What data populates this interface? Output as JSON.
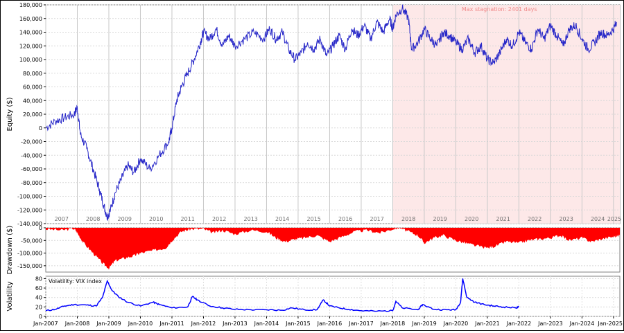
{
  "chart_data": [
    {
      "type": "line",
      "panel": "equity",
      "ylabel": "Equity ($)",
      "ylim": [
        -140000,
        180000
      ],
      "y_ticks": [
        "-140,000",
        "-120,000",
        "-100,000",
        "-80,000",
        "-60,000",
        "-40,000",
        "-20,000",
        "0",
        "20,000",
        "40,000",
        "60,000",
        "80,000",
        "100,000",
        "120,000",
        "140,000",
        "160,000",
        "180,000"
      ],
      "y_tick_values": [
        -140000,
        -120000,
        -100000,
        -80000,
        -60000,
        -40000,
        -20000,
        0,
        20000,
        40000,
        60000,
        80000,
        100000,
        120000,
        140000,
        160000,
        180000
      ],
      "year_labels": [
        "2007",
        "2008",
        "2009",
        "2010",
        "2011",
        "2012",
        "2013",
        "2014",
        "2015",
        "2016",
        "2017",
        "2018",
        "2019",
        "2020",
        "2021",
        "2022",
        "2023",
        "2024",
        "2025"
      ],
      "stagnation": {
        "label": "Max stagnation: 2401 days",
        "start": 2018.0,
        "end": 2025.2,
        "color": "#fde8e8"
      },
      "line_color": "#2828c8",
      "x": [
        2007.0,
        2007.3,
        2007.6,
        2007.9,
        2008.0,
        2008.1,
        2008.3,
        2008.5,
        2008.7,
        2008.85,
        2008.95,
        2009.05,
        2009.2,
        2009.4,
        2009.6,
        2009.8,
        2010.0,
        2010.3,
        2010.6,
        2010.9,
        2011.0,
        2011.15,
        2011.3,
        2011.5,
        2011.7,
        2011.9,
        2012.0,
        2012.2,
        2012.4,
        2012.6,
        2012.8,
        2013.0,
        2013.3,
        2013.6,
        2013.9,
        2014.1,
        2014.3,
        2014.5,
        2014.7,
        2014.9,
        2015.1,
        2015.3,
        2015.5,
        2015.7,
        2015.9,
        2016.1,
        2016.3,
        2016.5,
        2016.7,
        2016.9,
        2017.1,
        2017.3,
        2017.5,
        2017.7,
        2017.9,
        2018.0,
        2018.1,
        2018.3,
        2018.5,
        2018.6,
        2018.8,
        2019.0,
        2019.2,
        2019.4,
        2019.6,
        2019.8,
        2020.0,
        2020.2,
        2020.4,
        2020.6,
        2020.8,
        2021.0,
        2021.2,
        2021.4,
        2021.6,
        2021.8,
        2022.0,
        2022.2,
        2022.4,
        2022.6,
        2022.8,
        2023.0,
        2023.2,
        2023.4,
        2023.6,
        2023.8,
        2024.0,
        2024.2,
        2024.4,
        2024.6,
        2024.8,
        2025.0,
        2025.1
      ],
      "y": [
        0,
        10000,
        15000,
        20000,
        30000,
        -10000,
        -30000,
        -60000,
        -90000,
        -115000,
        -130000,
        -120000,
        -95000,
        -75000,
        -55000,
        -65000,
        -45000,
        -60000,
        -40000,
        -20000,
        0,
        40000,
        60000,
        80000,
        100000,
        125000,
        140000,
        130000,
        145000,
        120000,
        135000,
        120000,
        130000,
        140000,
        130000,
        145000,
        130000,
        140000,
        115000,
        100000,
        110000,
        125000,
        115000,
        130000,
        105000,
        120000,
        135000,
        115000,
        145000,
        135000,
        150000,
        130000,
        155000,
        140000,
        160000,
        145000,
        165000,
        175000,
        160000,
        115000,
        125000,
        145000,
        130000,
        120000,
        140000,
        135000,
        125000,
        115000,
        130000,
        110000,
        120000,
        100000,
        95000,
        110000,
        130000,
        120000,
        140000,
        125000,
        115000,
        145000,
        130000,
        150000,
        135000,
        120000,
        145000,
        150000,
        130000,
        115000,
        125000,
        140000,
        135000,
        145000,
        155000
      ]
    },
    {
      "type": "area",
      "panel": "drawdown",
      "ylabel": "Drawdown ($)",
      "ylim": [
        -175000,
        0
      ],
      "y_ticks": [
        "0",
        "-50,000",
        "-100,000",
        "-150,000"
      ],
      "y_tick_values": [
        0,
        -50000,
        -100000,
        -150000
      ],
      "fill_color": "#ff0000",
      "x": [
        2007.0,
        2007.5,
        2007.9,
        2008.0,
        2008.2,
        2008.5,
        2008.8,
        2009.0,
        2009.2,
        2009.5,
        2009.8,
        2010.0,
        2010.4,
        2010.8,
        2011.0,
        2011.3,
        2011.6,
        2012.0,
        2012.3,
        2012.6,
        2013.0,
        2013.5,
        2014.0,
        2014.3,
        2014.6,
        2014.9,
        2015.2,
        2015.6,
        2016.0,
        2016.4,
        2016.8,
        2017.2,
        2017.6,
        2018.0,
        2018.2,
        2018.5,
        2018.8,
        2019.0,
        2019.3,
        2019.6,
        2020.0,
        2020.3,
        2020.6,
        2021.0,
        2021.3,
        2021.6,
        2022.0,
        2022.3,
        2022.6,
        2023.0,
        2023.3,
        2023.6,
        2024.0,
        2024.3,
        2024.6,
        2025.0,
        2025.2
      ],
      "y": [
        -5000,
        -10000,
        -3000,
        -20000,
        -60000,
        -100000,
        -140000,
        -160000,
        -130000,
        -120000,
        -110000,
        -100000,
        -90000,
        -80000,
        -50000,
        -15000,
        -5000,
        -5000,
        -20000,
        -10000,
        -25000,
        -10000,
        -15000,
        -40000,
        -55000,
        -45000,
        -40000,
        -30000,
        -55000,
        -35000,
        -15000,
        -10000,
        -20000,
        -5000,
        0,
        -15000,
        -30000,
        -60000,
        -40000,
        -30000,
        -50000,
        -60000,
        -70000,
        -80000,
        -70000,
        -55000,
        -60000,
        -50000,
        -45000,
        -40000,
        -30000,
        -50000,
        -40000,
        -55000,
        -45000,
        -35000,
        -30000
      ]
    },
    {
      "type": "line",
      "panel": "volatility",
      "legend": "Volatility: VIX index",
      "ylabel": "Volatility",
      "ylim": [
        0,
        85
      ],
      "y_ticks": [
        "0",
        "20",
        "40",
        "60",
        "80"
      ],
      "y_tick_values": [
        0,
        20,
        40,
        60,
        80
      ],
      "x_ticks": [
        "Jan-2007",
        "Jan-2008",
        "Jan-2009",
        "Jan-2010",
        "Jan-2011",
        "Jan-2012",
        "Jan-2013",
        "Jan-2014",
        "Jan-2015",
        "Jan-2016",
        "Jan-2017",
        "Jan-2018",
        "Jan-2019",
        "Jan-2020",
        "Jan-2021",
        "Jan-2022",
        "Jan-2023",
        "Jan-2024",
        "Jan-2025"
      ],
      "line_color": "#0000ff",
      "x": [
        2007.0,
        2007.3,
        2007.6,
        2007.9,
        2008.3,
        2008.6,
        2008.8,
        2008.95,
        2009.1,
        2009.3,
        2009.6,
        2010.0,
        2010.4,
        2010.6,
        2011.0,
        2011.5,
        2011.65,
        2011.8,
        2012.2,
        2012.6,
        2013.0,
        2013.5,
        2014.0,
        2014.5,
        2014.8,
        2015.2,
        2015.6,
        2015.8,
        2016.0,
        2016.3,
        2016.6,
        2017.0,
        2017.5,
        2018.0,
        2018.1,
        2018.3,
        2018.8,
        2018.95,
        2019.3,
        2019.7,
        2020.0,
        2020.15,
        2020.22,
        2020.35,
        2020.6,
        2020.9,
        2021.2,
        2021.5,
        2021.9,
        2022.0
      ],
      "y": [
        12,
        15,
        22,
        25,
        24,
        22,
        40,
        75,
        55,
        42,
        30,
        22,
        30,
        25,
        18,
        20,
        42,
        35,
        22,
        18,
        15,
        14,
        14,
        13,
        18,
        14,
        14,
        35,
        22,
        18,
        15,
        12,
        11,
        12,
        32,
        18,
        14,
        25,
        15,
        14,
        14,
        30,
        80,
        40,
        30,
        25,
        22,
        20,
        18,
        20
      ]
    }
  ]
}
